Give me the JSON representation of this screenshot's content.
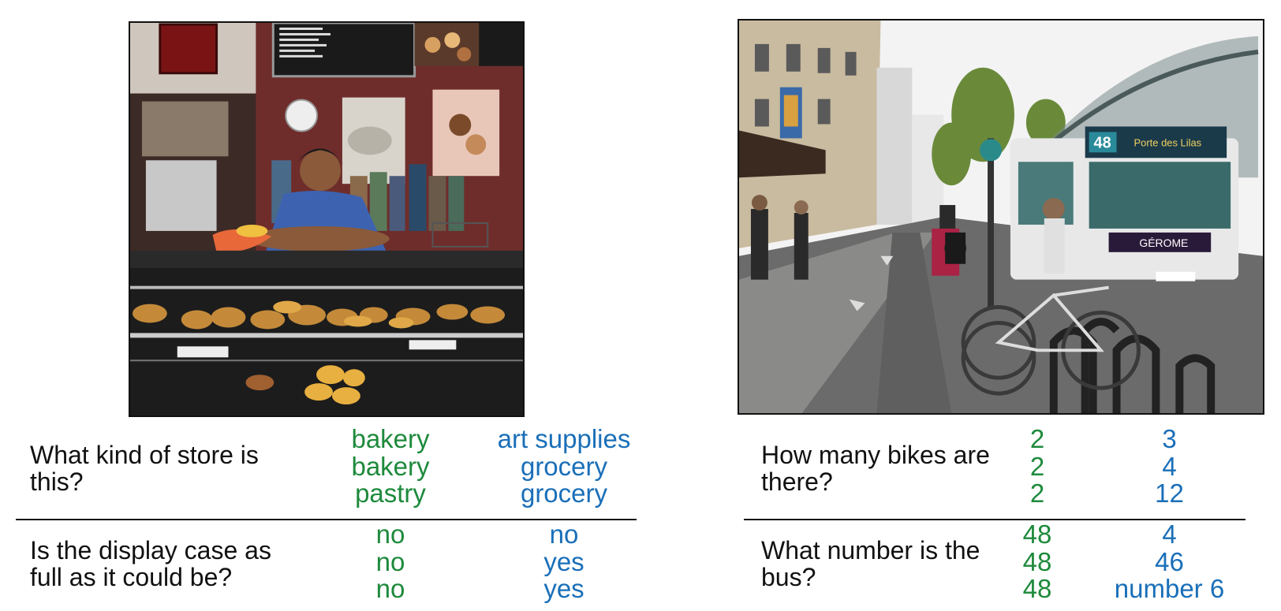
{
  "panels": [
    {
      "image_subject": "bakery",
      "qa": [
        {
          "question": "What kind of store is this?",
          "answers_human": [
            "bakery",
            "bakery",
            "pastry"
          ],
          "answers_other": [
            "art supplies",
            "grocery",
            "grocery"
          ]
        },
        {
          "question": "Is the display case as full as it could be?",
          "answers_human": [
            "no",
            "no",
            "no"
          ],
          "answers_other": [
            "no",
            "yes",
            "yes"
          ]
        }
      ]
    },
    {
      "image_subject": "bus",
      "image_text": {
        "bus_number": "48",
        "bus_destination": "Porte des Lilas",
        "bus_ad": "GÉROME"
      },
      "qa": [
        {
          "question": "How many bikes are there?",
          "answers_human": [
            "2",
            "2",
            "2"
          ],
          "answers_other": [
            "3",
            "4",
            "12"
          ]
        },
        {
          "question": "What number is the bus?",
          "answers_human": [
            "48",
            "48",
            "48"
          ],
          "answers_other": [
            "4",
            "46",
            "number 6"
          ]
        }
      ]
    }
  ],
  "colors": {
    "human_answers": "#1e8a3c",
    "other_answers": "#1a6fb8",
    "text": "#111111"
  }
}
